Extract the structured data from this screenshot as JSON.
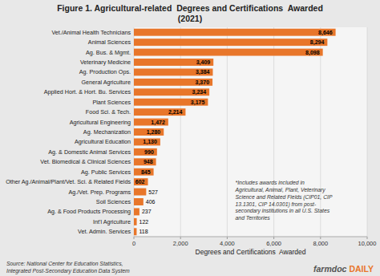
{
  "chart_data": {
    "type": "bar",
    "orientation": "horizontal",
    "title": "Figure 1. Agricultural-related  Degrees and Certifications  Awarded\n(2021)",
    "categories": [
      "Vet./Animal Health Technicians",
      "Animal Sciences",
      "Ag. Bus. & Mgmt.",
      "Veterinary Medicine",
      "Ag. Production Ops.",
      "General Agriculture",
      "Applied Hort. & Hort. Bu. Services",
      "Plant Sciences",
      "Food Sci. & Tech.",
      "Agricultural Engineering",
      "Ag. Mechanization",
      "Agricultural Education",
      "Ag. & Domestic Animal Services",
      "Vet. Biomedical & Clinical Sciences",
      "Ag. Public Services",
      "Other Ag./Animal/Plant/Vet. Sci. & Related Fields",
      "Ag./Vet. Prep. Programs",
      "Soil Sciences",
      "Ag. & Food Products Processing",
      "Int'l Agriculture",
      "Vet. Admin. Services"
    ],
    "values": [
      8646,
      8294,
      8098,
      3409,
      3384,
      3370,
      3234,
      3175,
      2214,
      1472,
      1280,
      1130,
      990,
      948,
      845,
      602,
      527,
      406,
      237,
      122,
      118
    ],
    "value_labels": [
      "8,646",
      "8,294",
      "8,098",
      "3,409",
      "3,384",
      "3,370",
      "3,234",
      "3,175",
      "2,214",
      "1,472",
      "1,280",
      "1,130",
      "990",
      "948",
      "845",
      "602",
      "527",
      "406",
      "237",
      "122",
      "118"
    ],
    "data_labels": true,
    "color": "#E8762A",
    "xlabel": "Degrees and Certifications  Awarded",
    "xlim": [
      0,
      10000
    ],
    "xticks": [
      0,
      {
        "value": 2000,
        "label": "2,000"
      },
      {
        "value": 4000,
        "label": "4,000"
      },
      {
        "value": 6000,
        "label": "6,000"
      },
      {
        "value": 8000,
        "label": "8,000"
      },
      {
        "value": 10000,
        "label": "10,000"
      }
    ],
    "grid": true,
    "annotations": [
      "*Includes awards included in\nAgricultural, Animal, Plant, Veterinary\nScience and Related Fields (CIP01, CIP\n13.1301, CIP 14.0301) from post-\nsecondary institutions in all U.S. States\nand Territories",
      "Source: National Center for Education Statistics,\nIntegrated Post-Secondary Education Data System",
      "farmdoc",
      "DAILY"
    ]
  }
}
